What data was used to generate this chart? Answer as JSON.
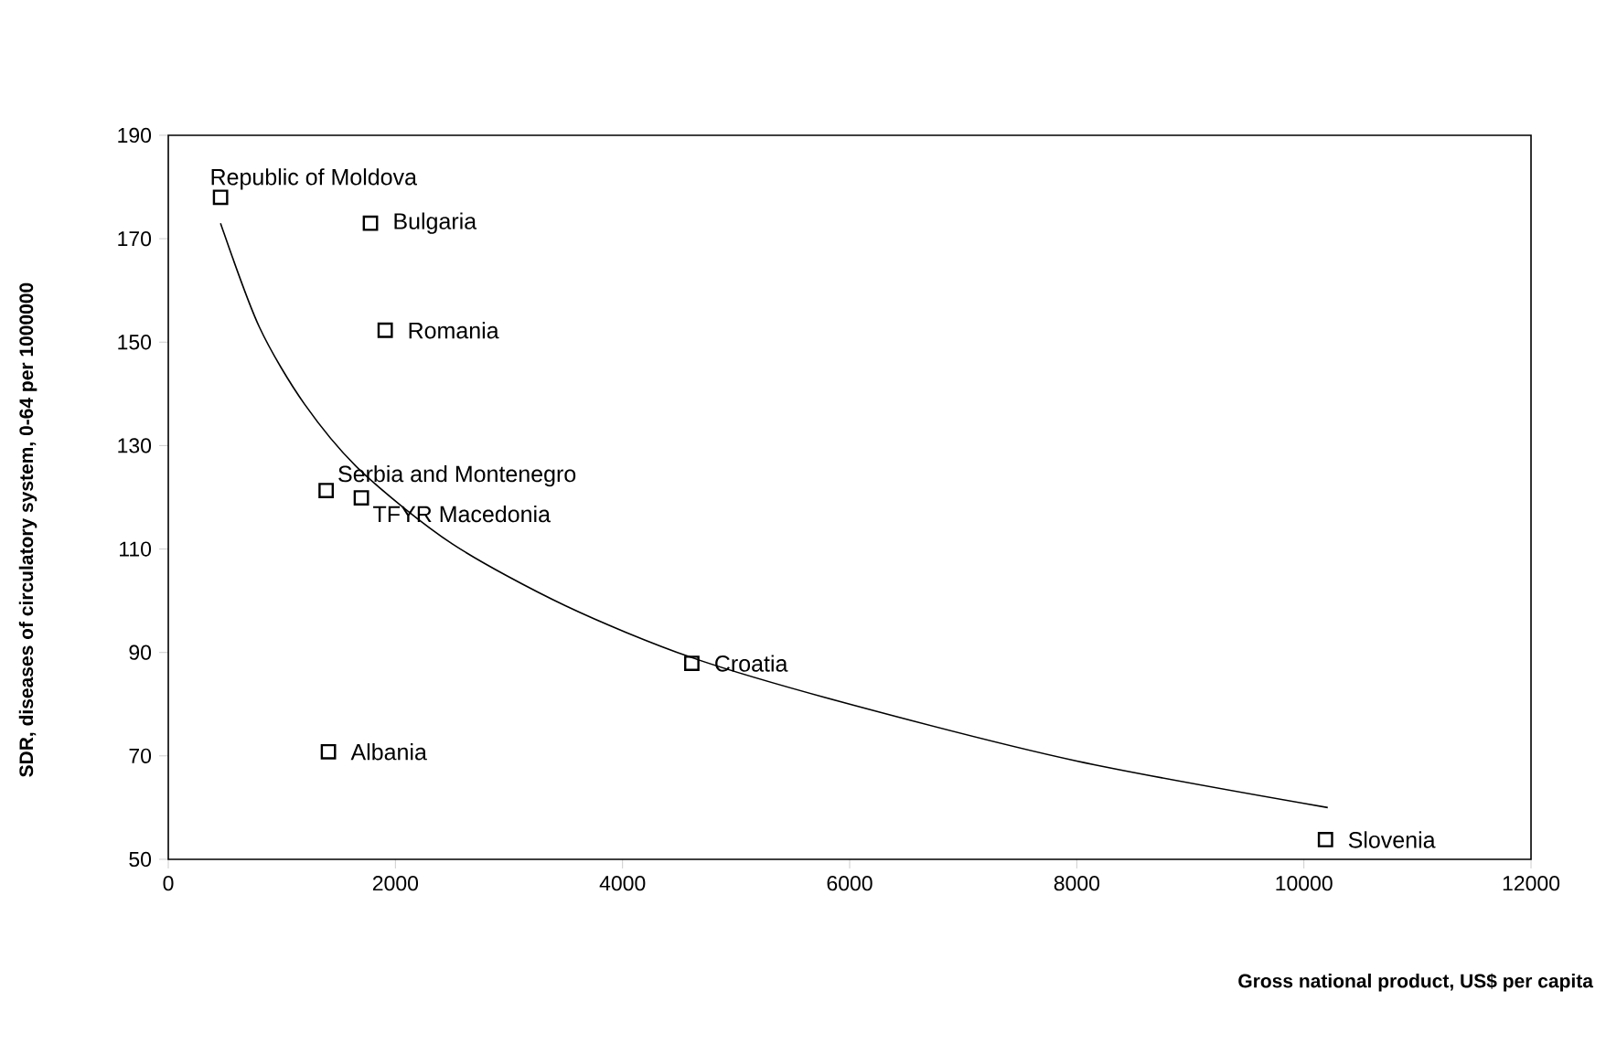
{
  "chart_data": {
    "type": "scatter",
    "xlabel": "Gross national product, US$ per capita",
    "ylabel": "SDR, diseases of circulatory system, 0-64 per 1000000",
    "xlim": [
      0,
      12000
    ],
    "ylim": [
      50,
      190
    ],
    "xticks": [
      0,
      2000,
      4000,
      6000,
      8000,
      10000,
      12000
    ],
    "yticks": [
      50,
      70,
      90,
      110,
      130,
      150,
      170,
      190
    ],
    "series": [
      {
        "color": "#000000",
        "marker": "square",
        "x": [
          460,
          1780,
          1910,
          1390,
          1700,
          4610,
          1410,
          10190
        ],
        "values": [
          178,
          173,
          152.3,
          121.3,
          119.9,
          87.9,
          70.8,
          53.8
        ]
      },
      {
        "type": "line",
        "color": "#000000",
        "marker": "none",
        "line_style": "solid",
        "x": [
          460,
          800,
          1200,
          1700,
          2500,
          3500,
          4610,
          6000,
          8000,
          10210
        ],
        "values": [
          173,
          153,
          138,
          125,
          111,
          99,
          89,
          80,
          69,
          60
        ]
      }
    ],
    "annotations": [
      {
        "text": "Republic of Moldova",
        "x": 460,
        "y": 178
      },
      {
        "text": "Bulgaria",
        "x": 1780,
        "y": 173
      },
      {
        "text": "Romania",
        "x": 1910,
        "y": 152.3
      },
      {
        "text": "Serbia and Montenegro",
        "x": 1390,
        "y": 121.3
      },
      {
        "text": "TFYR Macedonia",
        "x": 1700,
        "y": 119.9
      },
      {
        "text": "Croatia",
        "x": 4610,
        "y": 87.9
      },
      {
        "text": "Albania",
        "x": 1410,
        "y": 70.8
      },
      {
        "text": "Slovenia",
        "x": 10190,
        "y": 53.8
      }
    ]
  }
}
